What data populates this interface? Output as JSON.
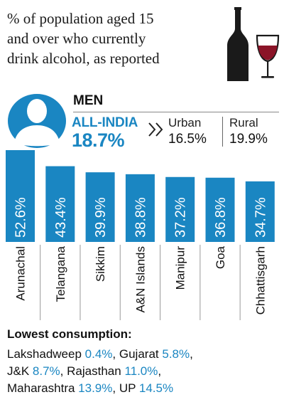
{
  "title_lines": [
    "% of population aged 15",
    "and over who currently",
    "drink alcohol, as reported"
  ],
  "men": {
    "label": "MEN",
    "all_india_label": "ALL-INDIA",
    "all_india_value": "18.7%",
    "urban_label": "Urban",
    "urban_value": "16.5%",
    "rural_label": "Rural",
    "rural_value": "19.9%"
  },
  "colors": {
    "accent": "#1a86c2",
    "bar": "#1a86c2",
    "text": "#222222",
    "icon": "#1a1a1a"
  },
  "icons": [
    "person-icon",
    "wine-bottle-icon",
    "wine-glass-icon",
    "chevron-right-icon"
  ],
  "chart_data": {
    "type": "bar",
    "categories": [
      "Arunachal",
      "Telangana",
      "Sikkim",
      "A&N Islands",
      "Manipur",
      "Goa",
      "Chhattisgarh"
    ],
    "values": [
      52.6,
      43.4,
      39.9,
      38.8,
      37.2,
      36.8,
      34.7
    ],
    "value_labels": [
      "52.6%",
      "43.4%",
      "39.9%",
      "38.8%",
      "37.2%",
      "36.8%",
      "34.7%"
    ],
    "ylim": [
      0,
      52.6
    ],
    "grid": false,
    "legend": "none"
  },
  "lowest": {
    "title": "Lowest consumption:",
    "lines": [
      [
        {
          "name": "Lakshadweep",
          "value": "0.4%",
          "sep": ","
        },
        {
          "name": "Gujarat",
          "value": "5.8%",
          "sep": ","
        }
      ],
      [
        {
          "name": "J&K",
          "value": "8.7%",
          "sep": ","
        },
        {
          "name": "Rajasthan",
          "value": "11.0%",
          "sep": ","
        }
      ],
      [
        {
          "name": "Maharashtra",
          "value": "13.9%",
          "sep": ","
        },
        {
          "name": "UP",
          "value": "14.5%",
          "sep": ""
        }
      ]
    ]
  }
}
